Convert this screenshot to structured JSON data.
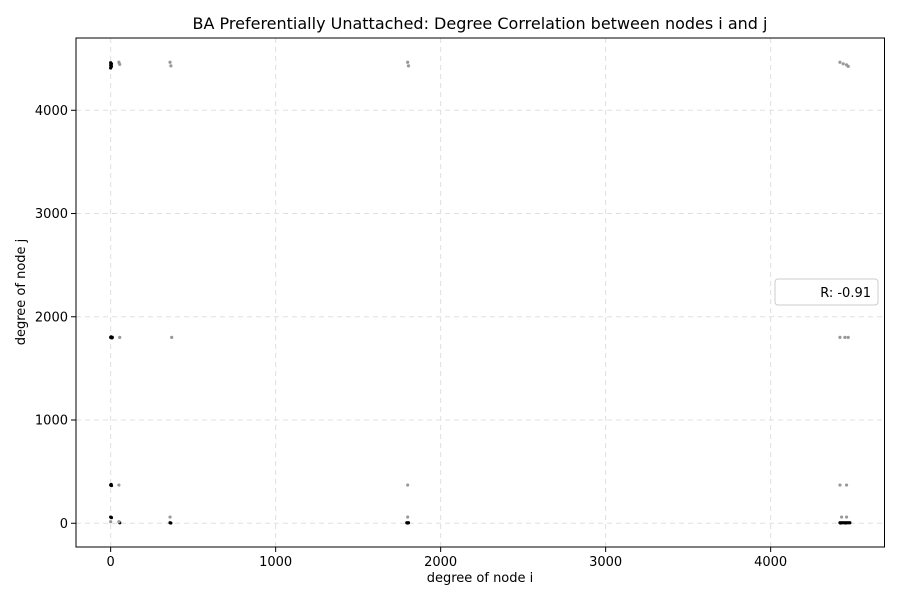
{
  "chart_data": {
    "type": "scatter",
    "title": "BA Preferentially Unattached: Degree Correlation between nodes i and j",
    "xlabel": "degree of node i",
    "ylabel": "degree of node j",
    "xlim": [
      -210,
      4690
    ],
    "ylim": [
      -230,
      4700
    ],
    "xticks": [
      0,
      1000,
      2000,
      3000,
      4000
    ],
    "yticks": [
      0,
      1000,
      2000,
      3000,
      4000
    ],
    "grid": true,
    "grid_color": "#e0e0e0",
    "legend": {
      "position": "center-right",
      "entries": [
        "R: -0.91"
      ]
    },
    "series": [
      {
        "color": "#000000",
        "points": [
          [
            0,
            4460
          ],
          [
            5,
            4450
          ],
          [
            0,
            4435
          ],
          [
            5,
            4425
          ],
          [
            0,
            4410
          ],
          [
            0,
            1800
          ],
          [
            5,
            1800
          ],
          [
            10,
            1800
          ],
          [
            3,
            1805
          ],
          [
            8,
            1795
          ],
          [
            0,
            370
          ],
          [
            5,
            365
          ],
          [
            3,
            375
          ],
          [
            0,
            60
          ],
          [
            5,
            55
          ],
          [
            55,
            5
          ],
          [
            360,
            5
          ],
          [
            365,
            2
          ],
          [
            1795,
            5
          ],
          [
            1800,
            2
          ],
          [
            1805,
            5
          ],
          [
            4420,
            5
          ],
          [
            4430,
            5
          ],
          [
            4440,
            5
          ],
          [
            4450,
            5
          ],
          [
            4460,
            5
          ],
          [
            4470,
            5
          ],
          [
            4480,
            5
          ],
          [
            4425,
            2
          ],
          [
            4455,
            2
          ]
        ]
      },
      {
        "color": "#999999",
        "points": [
          [
            50,
            4465
          ],
          [
            55,
            4445
          ],
          [
            360,
            4465
          ],
          [
            365,
            4430
          ],
          [
            1800,
            4465
          ],
          [
            1805,
            4430
          ],
          [
            4420,
            4465
          ],
          [
            4440,
            4450
          ],
          [
            4460,
            4440
          ],
          [
            4470,
            4425
          ],
          [
            55,
            1800
          ],
          [
            370,
            1800
          ],
          [
            4420,
            1800
          ],
          [
            4450,
            1800
          ],
          [
            4470,
            1800
          ],
          [
            50,
            370
          ],
          [
            1800,
            370
          ],
          [
            4420,
            370
          ],
          [
            4460,
            370
          ],
          [
            0,
            15
          ],
          [
            360,
            60
          ],
          [
            1800,
            60
          ],
          [
            4430,
            60
          ],
          [
            4460,
            60
          ],
          [
            50,
            15
          ]
        ]
      }
    ]
  }
}
